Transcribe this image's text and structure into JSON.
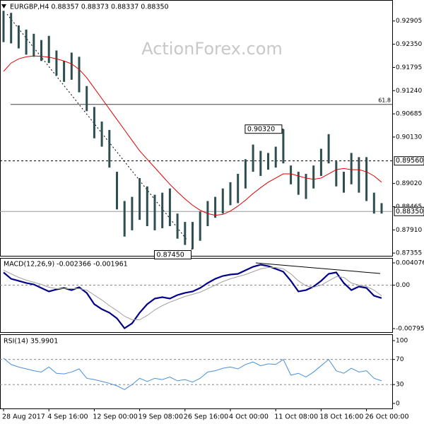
{
  "chart_data": [
    {
      "type": "candlestick",
      "title": "EURGBP,H4  0.88357 0.88373 0.88337 0.88350",
      "watermark": "ActionForex.com",
      "categories": [
        "28 Aug 2017",
        null,
        null,
        null,
        null,
        null,
        "4 Sep 16:00",
        null,
        null,
        null,
        null,
        null,
        "12 Sep 00:00",
        null,
        null,
        null,
        null,
        null,
        "19 Sep 08:00",
        null,
        null,
        null,
        null,
        null,
        "26 Sep 16:00",
        null,
        null,
        null,
        null,
        null,
        "4 Oct 00:00",
        null,
        null,
        null,
        null,
        null,
        "11 Oct 08:00",
        null,
        null,
        null,
        null,
        null,
        "18 Oct 16:00",
        null,
        null,
        null,
        null,
        null,
        "26 Oct 00:00",
        null,
        null
      ],
      "color": "#2e4f4f",
      "high": [
        0.9315,
        0.931,
        0.928,
        0.927,
        0.926,
        0.9245,
        0.9255,
        0.922,
        0.9195,
        0.9215,
        0.9205,
        0.9135,
        0.9085,
        0.905,
        0.903,
        0.893,
        0.886,
        0.887,
        0.8915,
        0.8895,
        0.8875,
        0.888,
        0.889,
        0.883,
        0.881,
        0.881,
        0.8835,
        0.886,
        0.887,
        0.889,
        0.8905,
        0.8925,
        0.896,
        0.8995,
        0.898,
        0.8975,
        0.899,
        0.9032,
        0.8945,
        0.893,
        0.8925,
        0.8945,
        0.8985,
        0.902,
        0.8955,
        0.893,
        0.8975,
        0.8965,
        0.8965,
        0.888,
        0.8855
      ],
      "low": [
        0.924,
        0.9237,
        0.9225,
        0.921,
        0.9205,
        0.9195,
        0.919,
        0.916,
        0.9145,
        0.915,
        0.912,
        0.9075,
        0.901,
        0.899,
        0.894,
        0.884,
        0.8775,
        0.879,
        0.8815,
        0.88,
        0.879,
        0.8795,
        0.88,
        0.877,
        0.8755,
        0.8745,
        0.8765,
        0.88,
        0.882,
        0.883,
        0.885,
        0.8855,
        0.889,
        0.893,
        0.892,
        0.8935,
        0.894,
        0.895,
        0.89,
        0.8875,
        0.8865,
        0.889,
        0.892,
        0.895,
        0.8895,
        0.888,
        0.89,
        0.888,
        0.886,
        0.883,
        0.883
      ],
      "ma_color": "#e00000",
      "ma_values": [
        0.917,
        0.919,
        0.92,
        0.9205,
        0.9207,
        0.9206,
        0.9204,
        0.92,
        0.9195,
        0.9188,
        0.9175,
        0.9155,
        0.913,
        0.9105,
        0.908,
        0.9055,
        0.903,
        0.9005,
        0.898,
        0.896,
        0.894,
        0.892,
        0.89,
        0.8882,
        0.8865,
        0.885,
        0.8838,
        0.883,
        0.8826,
        0.8828,
        0.8836,
        0.8848,
        0.8862,
        0.8878,
        0.8892,
        0.8905,
        0.8915,
        0.8925,
        0.8925,
        0.892,
        0.8915,
        0.8912,
        0.8915,
        0.8925,
        0.8935,
        0.8938,
        0.8935,
        0.8935,
        0.893,
        0.892,
        0.8905
      ],
      "ylim": [
        0.8729,
        0.9334
      ],
      "yticks": [
        0.92905,
        {
          "value": 0.9235,
          "label": "0.92350"
        },
        0.91795,
        {
          "value": 0.9124,
          "label": "0.91240"
        },
        0.90685,
        {
          "value": 0.9013,
          "label": "0.90130"
        },
        {
          "value": 0.8902,
          "label": "0.89020"
        },
        0.88465,
        {
          "value": 0.8791,
          "label": "0.87910"
        },
        0.87355
      ],
      "hlines": [
        {
          "value": 0.8956,
          "label": "0.89560",
          "style": "dashed"
        },
        {
          "value": 0.8835,
          "label": "0.88350",
          "style": "solid"
        }
      ],
      "fib_line": {
        "value": 0.9091,
        "label": "61.8"
      },
      "annotations": [
        {
          "value": 0.9032,
          "label": "0.90320"
        },
        {
          "value": 0.8745,
          "label": "0.87450"
        }
      ]
    },
    {
      "type": "line",
      "title": "MACD(12,26,9) -0.002366 -0.001961",
      "ylim": [
        -0.008603,
        0.004852
      ],
      "yticks": [
        0.004076,
        {
          "value": 0,
          "label": "0.00"
        },
        -0.007956
      ],
      "ref_lines": [
        0
      ],
      "lines": [
        {
          "color": "#00008b",
          "width": 2.2,
          "values": [
            0.00233,
            0.00116,
            0.00078,
            0.00039,
            0.00013,
            -0.00052,
            -0.00116,
            -0.00078,
            -0.00052,
            -0.00091,
            -0.00039,
            -0.00142,
            -0.00349,
            -0.0044,
            -0.00505,
            -0.00608,
            -0.00789,
            -0.00699,
            -0.00505,
            -0.00349,
            -0.00246,
            -0.0022,
            -0.00246,
            -0.00181,
            -0.00142,
            -0.00116,
            -0.00052,
            0.00039,
            0.00116,
            0.00168,
            0.00194,
            0.00207,
            0.00272,
            0.00336,
            0.00375,
            0.00349,
            0.00298,
            0.00246,
            0.00078,
            -0.00116,
            -0.00091,
            -0.00026,
            0.00078,
            0.00207,
            0.00233,
            0.00039,
            -0.00091,
            -0.00026,
            -0.00052,
            -0.00194,
            -0.00237
          ]
        },
        {
          "color": "#a0a0a0",
          "width": 1,
          "values": [
            0.00272,
            0.00207,
            0.00142,
            0.00091,
            0.00052,
            0.00013,
            -0.00039,
            -0.00065,
            -0.00065,
            -0.00065,
            -0.00065,
            -0.00091,
            -0.00181,
            -0.00272,
            -0.00375,
            -0.00466,
            -0.00569,
            -0.00634,
            -0.00634,
            -0.00556,
            -0.00453,
            -0.00375,
            -0.00311,
            -0.00259,
            -0.00207,
            -0.00168,
            -0.00129,
            -0.00065,
            0,
            0.00065,
            0.00116,
            0.00155,
            0.00194,
            0.00246,
            0.00298,
            0.00324,
            0.00324,
            0.00298,
            0.00207,
            0.00078,
            -0.00013,
            -0.00039,
            0,
            0.00078,
            0.00155,
            0.00142,
            0.00039,
            0,
            -0.00026,
            -0.00091,
            -0.00196
          ]
        }
      ]
    },
    {
      "type": "line",
      "title": "RSI(14) 35.9901",
      "ylim": [
        -8,
        109
      ],
      "yticks": [
        100,
        70,
        30,
        0
      ],
      "ref_lines": [
        70,
        30
      ],
      "lines": [
        {
          "color": "#4a90d9",
          "width": 1,
          "values": [
            72,
            62,
            58,
            55,
            52,
            50,
            58,
            48,
            47,
            50,
            55,
            40,
            38,
            35,
            32,
            28,
            22,
            30,
            40,
            35,
            40,
            38,
            42,
            36,
            38,
            34,
            40,
            50,
            52,
            56,
            58,
            55,
            62,
            66,
            60,
            63,
            62,
            70,
            45,
            48,
            42,
            50,
            60,
            70,
            52,
            48,
            56,
            50,
            52,
            40,
            36
          ]
        }
      ]
    }
  ]
}
